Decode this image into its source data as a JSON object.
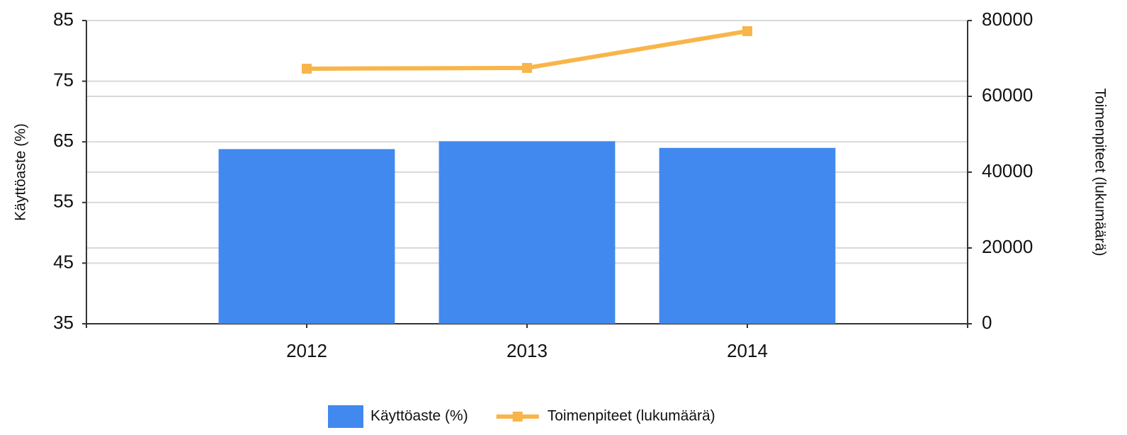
{
  "chart_data": {
    "type": "combo",
    "categories": [
      "2012",
      "2013",
      "2014"
    ],
    "series": [
      {
        "name": "Käyttöaste (%)",
        "type": "bar",
        "axis": "y",
        "color": "#4189ee",
        "values": [
          63.8,
          65.1,
          64.0
        ]
      },
      {
        "name": "Toimenpiteet (lukumäärä)",
        "type": "line",
        "axis": "y2",
        "color": "#f8b54a",
        "values": [
          67300,
          67500,
          77200
        ]
      }
    ],
    "ylabel": "Käyttöaste (%)",
    "y2label": "Toimenpiteet (lukumäärä)",
    "ylim": [
      35,
      85
    ],
    "yticks": [
      35,
      45,
      55,
      65,
      75,
      85
    ],
    "y2lim": [
      0,
      80000
    ],
    "y2ticks": [
      0,
      20000,
      40000,
      60000,
      80000
    ],
    "grid": true,
    "legend": "bottom"
  }
}
